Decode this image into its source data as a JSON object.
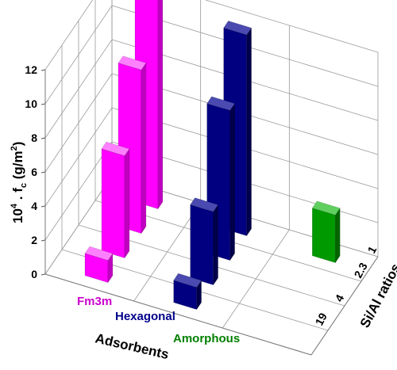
{
  "chart_data": {
    "type": "bar3d",
    "ylabel_base": "10",
    "ylabel_exp": "4",
    "ylabel_mid": " . f",
    "ylabel_sub": "c",
    "ylabel_unit_open": " (g/m",
    "ylabel_unit_exp": "2",
    "ylabel_unit_close": ")",
    "xlabel": "Adsorbents",
    "zlabel": "Si/Al ratios",
    "ylim": [
      0,
      12
    ],
    "yticks": [
      "0",
      "2",
      "4",
      "6",
      "8",
      "10",
      "12"
    ],
    "categories": [
      "Fm3m",
      "Hexagonal",
      "Amorphous"
    ],
    "category_colors": [
      "#cc00cc",
      "#00008b",
      "#008000"
    ],
    "ratios": [
      "19",
      "4",
      "2.3",
      "1"
    ],
    "bars": [
      {
        "category": "Fm3m",
        "ratio": "19",
        "value": 1.3
      },
      {
        "category": "Fm3m",
        "ratio": "4",
        "value": 6.0
      },
      {
        "category": "Fm3m",
        "ratio": "2.3",
        "value": 9.6
      },
      {
        "category": "Fm3m",
        "ratio": "1",
        "value": 12.8
      },
      {
        "category": "Hexagonal",
        "ratio": "19",
        "value": 1.3
      },
      {
        "category": "Hexagonal",
        "ratio": "4",
        "value": 4.3
      },
      {
        "category": "Hexagonal",
        "ratio": "2.3",
        "value": 8.8
      },
      {
        "category": "Hexagonal",
        "ratio": "1",
        "value": 11.8
      },
      {
        "category": "Amorphous",
        "ratio": "1",
        "value": 2.8
      }
    ],
    "bar_colors": {
      "Fm3m": {
        "front": "#ff00ff",
        "side": "#c000c0",
        "top": "#ff80ff"
      },
      "Hexagonal": {
        "front": "#000080",
        "side": "#00004a",
        "top": "#4a4ab0"
      },
      "Amorphous": {
        "front": "#009900",
        "side": "#006400",
        "top": "#5fcf5f"
      }
    }
  }
}
